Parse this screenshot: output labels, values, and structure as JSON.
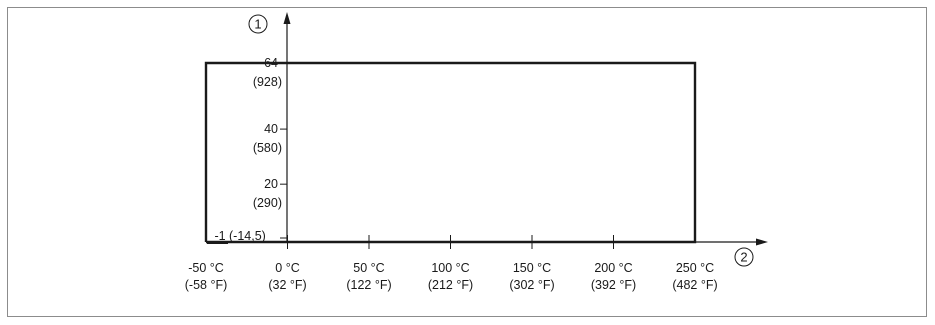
{
  "chart_data": {
    "type": "line",
    "y_axis_marker": "1",
    "x_axis_marker": "2",
    "y_ticks": [
      {
        "value": 64,
        "label": "64",
        "sublabel": "(928)"
      },
      {
        "value": 40,
        "label": "40",
        "sublabel": "(580)"
      },
      {
        "value": 20,
        "label": "20",
        "sublabel": "(290)"
      },
      {
        "value": -1,
        "label": "-1",
        "sublabel": "(-14,5)"
      }
    ],
    "x_ticks": [
      {
        "value": -50,
        "label": "-50 °C",
        "sublabel": "(-58 °F)"
      },
      {
        "value": 0,
        "label": "0 °C",
        "sublabel": "(32 °F)"
      },
      {
        "value": 50,
        "label": "50 °C",
        "sublabel": "(122 °F)"
      },
      {
        "value": 100,
        "label": "100 °C",
        "sublabel": "(212 °F)"
      },
      {
        "value": 150,
        "label": "150 °C",
        "sublabel": "(302 °F)"
      },
      {
        "value": 200,
        "label": "200 °C",
        "sublabel": "(392 °F)"
      },
      {
        "value": 250,
        "label": "250 °C",
        "sublabel": "(482 °F)"
      }
    ],
    "series": [
      {
        "x": [
          -50,
          -50,
          250,
          250,
          -50
        ],
        "y": [
          -1,
          64,
          64,
          -1,
          -1
        ]
      }
    ],
    "xlim": [
      -50,
      250
    ],
    "ylim": [
      -1,
      64
    ],
    "grid": false
  }
}
